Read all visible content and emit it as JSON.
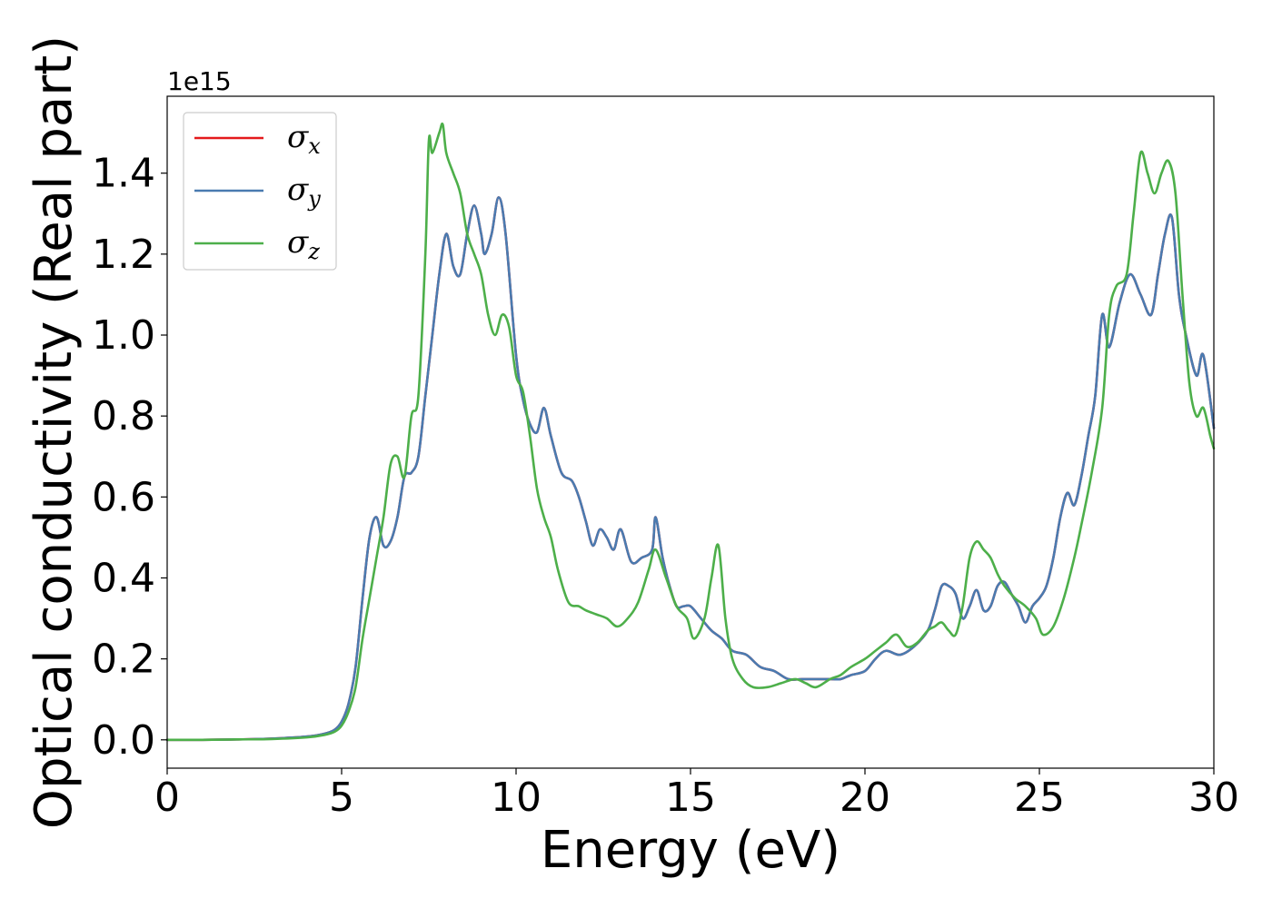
{
  "chart_data": {
    "type": "line",
    "title": "",
    "xlabel": "Energy (eV)",
    "ylabel": "Optical conductivity (Real part)",
    "y_offset_text": "1e15",
    "xlim": [
      0,
      30
    ],
    "ylim": [
      -0.07,
      1.59
    ],
    "xticks": [
      0,
      5,
      10,
      15,
      20,
      25,
      30
    ],
    "yticks": [
      0.0,
      0.2,
      0.4,
      0.6,
      0.8,
      1.0,
      1.2,
      1.4
    ],
    "ytick_labels": [
      "0.0",
      "0.2",
      "0.4",
      "0.6",
      "0.8",
      "1.0",
      "1.2",
      "1.4"
    ],
    "grid": false,
    "legend_position": "top-left",
    "series": [
      {
        "name": "σ_x",
        "symbol": "σ",
        "subscript": "x",
        "color": "#e41a1c",
        "x": [
          0,
          1,
          2,
          3,
          4,
          4.5,
          4.8,
          5.0,
          5.2,
          5.4,
          5.6,
          5.8,
          6.0,
          6.2,
          6.4,
          6.6,
          6.8,
          7.0,
          7.2,
          7.4,
          7.6,
          7.8,
          8.0,
          8.2,
          8.4,
          8.6,
          8.8,
          9.0,
          9.1,
          9.3,
          9.5,
          9.7,
          10.0,
          10.2,
          10.4,
          10.6,
          10.8,
          11.0,
          11.3,
          11.6,
          11.8,
          12.0,
          12.2,
          12.4,
          12.6,
          12.8,
          13.0,
          13.3,
          13.6,
          13.9,
          14.0,
          14.2,
          14.4,
          14.6,
          14.8,
          15.0,
          15.3,
          15.6,
          15.9,
          16.2,
          16.6,
          17.0,
          17.4,
          17.8,
          18.2,
          18.6,
          19.0,
          19.3,
          19.6,
          20.0,
          20.3,
          20.6,
          21.0,
          21.4,
          21.8,
          22.0,
          22.2,
          22.4,
          22.6,
          22.8,
          23.0,
          23.2,
          23.4,
          23.6,
          23.8,
          24.0,
          24.2,
          24.4,
          24.6,
          24.8,
          25.0,
          25.2,
          25.4,
          25.6,
          25.8,
          26.0,
          26.2,
          26.4,
          26.6,
          26.8,
          27.0,
          27.3,
          27.6,
          27.9,
          28.2,
          28.4,
          28.6,
          28.8,
          29.0,
          29.2,
          29.5,
          29.7,
          30.0
        ],
        "values": [
          0,
          0,
          0.001,
          0.003,
          0.008,
          0.015,
          0.025,
          0.045,
          0.09,
          0.18,
          0.35,
          0.5,
          0.55,
          0.48,
          0.49,
          0.55,
          0.65,
          0.66,
          0.7,
          0.85,
          1.0,
          1.15,
          1.25,
          1.17,
          1.15,
          1.25,
          1.32,
          1.25,
          1.2,
          1.25,
          1.34,
          1.25,
          0.95,
          0.84,
          0.78,
          0.76,
          0.82,
          0.75,
          0.66,
          0.64,
          0.6,
          0.54,
          0.48,
          0.52,
          0.5,
          0.47,
          0.52,
          0.44,
          0.45,
          0.47,
          0.55,
          0.45,
          0.38,
          0.33,
          0.33,
          0.33,
          0.3,
          0.27,
          0.25,
          0.22,
          0.21,
          0.18,
          0.17,
          0.15,
          0.15,
          0.15,
          0.15,
          0.15,
          0.16,
          0.17,
          0.2,
          0.22,
          0.21,
          0.23,
          0.27,
          0.32,
          0.38,
          0.38,
          0.36,
          0.3,
          0.33,
          0.37,
          0.32,
          0.33,
          0.38,
          0.39,
          0.36,
          0.33,
          0.29,
          0.33,
          0.35,
          0.38,
          0.45,
          0.55,
          0.61,
          0.58,
          0.65,
          0.75,
          0.85,
          1.05,
          0.97,
          1.08,
          1.15,
          1.1,
          1.05,
          1.15,
          1.25,
          1.29,
          1.1,
          1.0,
          0.9,
          0.95,
          0.77
        ]
      },
      {
        "name": "σ_y",
        "symbol": "σ",
        "subscript": "y",
        "color": "#4a7bb0",
        "x": [
          0,
          1,
          2,
          3,
          4,
          4.5,
          4.8,
          5.0,
          5.2,
          5.4,
          5.6,
          5.8,
          6.0,
          6.2,
          6.4,
          6.6,
          6.8,
          7.0,
          7.2,
          7.4,
          7.6,
          7.8,
          8.0,
          8.2,
          8.4,
          8.6,
          8.8,
          9.0,
          9.1,
          9.3,
          9.5,
          9.7,
          10.0,
          10.2,
          10.4,
          10.6,
          10.8,
          11.0,
          11.3,
          11.6,
          11.8,
          12.0,
          12.2,
          12.4,
          12.6,
          12.8,
          13.0,
          13.3,
          13.6,
          13.9,
          14.0,
          14.2,
          14.4,
          14.6,
          14.8,
          15.0,
          15.3,
          15.6,
          15.9,
          16.2,
          16.6,
          17.0,
          17.4,
          17.8,
          18.2,
          18.6,
          19.0,
          19.3,
          19.6,
          20.0,
          20.3,
          20.6,
          21.0,
          21.4,
          21.8,
          22.0,
          22.2,
          22.4,
          22.6,
          22.8,
          23.0,
          23.2,
          23.4,
          23.6,
          23.8,
          24.0,
          24.2,
          24.4,
          24.6,
          24.8,
          25.0,
          25.2,
          25.4,
          25.6,
          25.8,
          26.0,
          26.2,
          26.4,
          26.6,
          26.8,
          27.0,
          27.3,
          27.6,
          27.9,
          28.2,
          28.4,
          28.6,
          28.8,
          29.0,
          29.2,
          29.5,
          29.7,
          30.0
        ],
        "values": [
          0,
          0,
          0.001,
          0.003,
          0.008,
          0.015,
          0.025,
          0.045,
          0.09,
          0.18,
          0.35,
          0.5,
          0.55,
          0.48,
          0.49,
          0.55,
          0.65,
          0.66,
          0.7,
          0.85,
          1.0,
          1.15,
          1.25,
          1.17,
          1.15,
          1.25,
          1.32,
          1.25,
          1.2,
          1.25,
          1.34,
          1.25,
          0.95,
          0.84,
          0.78,
          0.76,
          0.82,
          0.75,
          0.66,
          0.64,
          0.6,
          0.54,
          0.48,
          0.52,
          0.5,
          0.47,
          0.52,
          0.44,
          0.45,
          0.47,
          0.55,
          0.45,
          0.38,
          0.33,
          0.33,
          0.33,
          0.3,
          0.27,
          0.25,
          0.22,
          0.21,
          0.18,
          0.17,
          0.15,
          0.15,
          0.15,
          0.15,
          0.15,
          0.16,
          0.17,
          0.2,
          0.22,
          0.21,
          0.23,
          0.27,
          0.32,
          0.38,
          0.38,
          0.36,
          0.3,
          0.33,
          0.37,
          0.32,
          0.33,
          0.38,
          0.39,
          0.36,
          0.33,
          0.29,
          0.33,
          0.35,
          0.38,
          0.45,
          0.55,
          0.61,
          0.58,
          0.65,
          0.75,
          0.85,
          1.05,
          0.97,
          1.08,
          1.15,
          1.1,
          1.05,
          1.15,
          1.25,
          1.29,
          1.1,
          1.0,
          0.9,
          0.95,
          0.77
        ]
      },
      {
        "name": "σ_z",
        "symbol": "σ",
        "subscript": "z",
        "color": "#4daf4a",
        "x": [
          0,
          1,
          2,
          3,
          4,
          4.5,
          4.8,
          5.0,
          5.2,
          5.4,
          5.6,
          5.8,
          6.0,
          6.2,
          6.4,
          6.6,
          6.8,
          7.0,
          7.2,
          7.4,
          7.5,
          7.6,
          7.8,
          7.9,
          8.0,
          8.2,
          8.4,
          8.6,
          8.8,
          9.0,
          9.2,
          9.4,
          9.6,
          9.8,
          10.0,
          10.2,
          10.4,
          10.6,
          10.8,
          11.0,
          11.2,
          11.5,
          11.8,
          12.0,
          12.3,
          12.6,
          12.9,
          13.2,
          13.5,
          13.8,
          14.0,
          14.3,
          14.6,
          14.9,
          15.1,
          15.4,
          15.6,
          15.8,
          16.0,
          16.2,
          16.5,
          16.8,
          17.2,
          17.6,
          18.0,
          18.3,
          18.6,
          19.0,
          19.3,
          19.6,
          20.0,
          20.3,
          20.6,
          20.9,
          21.2,
          21.5,
          21.8,
          22.0,
          22.2,
          22.4,
          22.6,
          22.8,
          23.0,
          23.2,
          23.4,
          23.6,
          23.8,
          24.0,
          24.3,
          24.6,
          24.9,
          25.1,
          25.4,
          25.7,
          26.0,
          26.2,
          26.5,
          26.8,
          27.0,
          27.2,
          27.5,
          27.7,
          27.9,
          28.1,
          28.3,
          28.5,
          28.7,
          28.9,
          29.1,
          29.3,
          29.5,
          29.7,
          29.9,
          30.0
        ],
        "values": [
          0,
          0,
          0.001,
          0.002,
          0.006,
          0.012,
          0.02,
          0.035,
          0.07,
          0.13,
          0.25,
          0.35,
          0.45,
          0.55,
          0.68,
          0.7,
          0.65,
          0.8,
          0.85,
          1.2,
          1.48,
          1.45,
          1.5,
          1.52,
          1.45,
          1.4,
          1.35,
          1.25,
          1.2,
          1.15,
          1.05,
          1.0,
          1.05,
          1.02,
          0.9,
          0.86,
          0.75,
          0.62,
          0.55,
          0.5,
          0.42,
          0.34,
          0.33,
          0.32,
          0.31,
          0.3,
          0.28,
          0.3,
          0.34,
          0.42,
          0.47,
          0.4,
          0.33,
          0.3,
          0.25,
          0.3,
          0.4,
          0.48,
          0.3,
          0.2,
          0.15,
          0.13,
          0.13,
          0.14,
          0.15,
          0.14,
          0.13,
          0.15,
          0.16,
          0.18,
          0.2,
          0.22,
          0.24,
          0.26,
          0.23,
          0.24,
          0.27,
          0.28,
          0.29,
          0.27,
          0.26,
          0.33,
          0.45,
          0.49,
          0.47,
          0.45,
          0.41,
          0.38,
          0.35,
          0.33,
          0.3,
          0.26,
          0.28,
          0.35,
          0.45,
          0.53,
          0.66,
          0.82,
          1.05,
          1.12,
          1.15,
          1.3,
          1.45,
          1.4,
          1.35,
          1.4,
          1.43,
          1.35,
          1.1,
          0.88,
          0.8,
          0.82,
          0.75,
          0.72
        ]
      }
    ]
  }
}
